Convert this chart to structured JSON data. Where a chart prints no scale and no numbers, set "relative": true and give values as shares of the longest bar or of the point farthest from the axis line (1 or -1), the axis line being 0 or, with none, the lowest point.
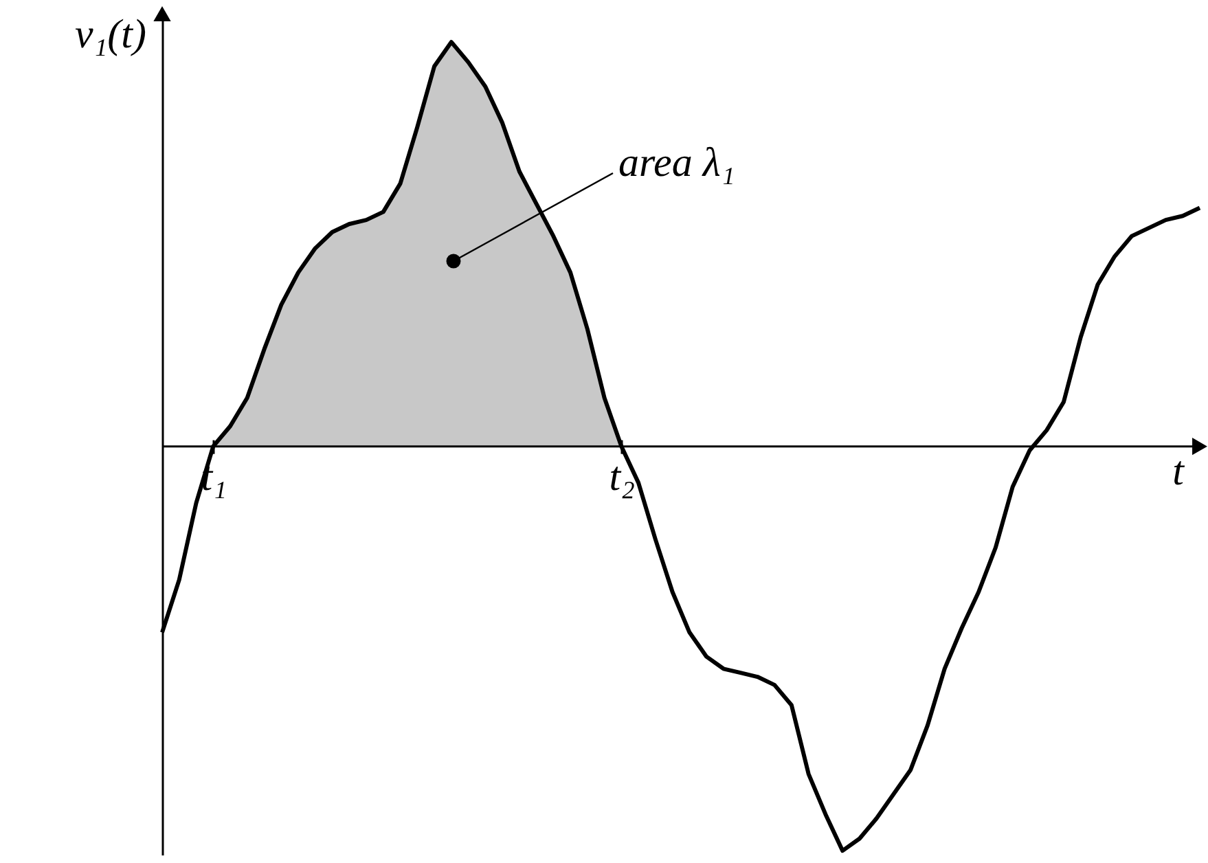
{
  "chart_data": {
    "type": "line",
    "relative": true,
    "xlabel": "t",
    "ylabel": "v₁(t)",
    "categories": [
      null,
      null,
      null,
      "t₁",
      null,
      null,
      null,
      null,
      null,
      null,
      null,
      null,
      null,
      null,
      null,
      null,
      null,
      null,
      null,
      null,
      null,
      null,
      null,
      null,
      null,
      null,
      null,
      "t₂",
      null,
      null,
      null,
      null,
      null,
      null,
      null,
      null,
      null,
      null,
      null,
      null,
      null,
      null,
      null,
      null,
      null,
      null,
      null,
      null,
      null,
      null,
      null,
      null,
      null,
      null,
      null,
      null,
      null,
      null,
      null,
      null,
      null,
      null
    ],
    "grid": false,
    "marker": "none",
    "line_style": "solid",
    "annotations": [
      "area λ₁"
    ],
    "series": [
      {
        "type": "area",
        "color": "#c8c8c8",
        "values": [
          null,
          null,
          null,
          0,
          0.05,
          0.12,
          0.24,
          0.35,
          0.43,
          0.49,
          0.53,
          0.55,
          0.56,
          0.58,
          0.65,
          0.79,
          0.94,
          1,
          0.95,
          0.89,
          0.8,
          0.68,
          0.6,
          0.52,
          0.43,
          0.29,
          0.12,
          0,
          null,
          null,
          null,
          null,
          null,
          null,
          null,
          null,
          null,
          null,
          null,
          null,
          null,
          null,
          null,
          null,
          null,
          null,
          null,
          null,
          null,
          null,
          null,
          null,
          null,
          null,
          null,
          null,
          null,
          null,
          null,
          null,
          null,
          null
        ]
      },
      {
        "color": "#000000",
        "values": [
          -0.46,
          -0.33,
          -0.14,
          0,
          0.05,
          0.12,
          0.24,
          0.35,
          0.43,
          0.49,
          0.53,
          0.55,
          0.56,
          0.58,
          0.65,
          0.79,
          0.94,
          1,
          0.95,
          0.89,
          0.8,
          0.68,
          0.6,
          0.52,
          0.43,
          0.29,
          0.12,
          0,
          -0.09,
          -0.23,
          -0.36,
          -0.46,
          -0.52,
          -0.55,
          -0.56,
          -0.57,
          -0.59,
          -0.64,
          -0.81,
          -0.91,
          -1,
          -0.97,
          -0.92,
          -0.86,
          -0.8,
          -0.69,
          -0.55,
          -0.45,
          -0.36,
          -0.25,
          -0.1,
          -0.01,
          0.04,
          0.11,
          0.27,
          0.4,
          0.47,
          0.52,
          0.54,
          0.56,
          0.57,
          0.59
        ]
      }
    ]
  }
}
